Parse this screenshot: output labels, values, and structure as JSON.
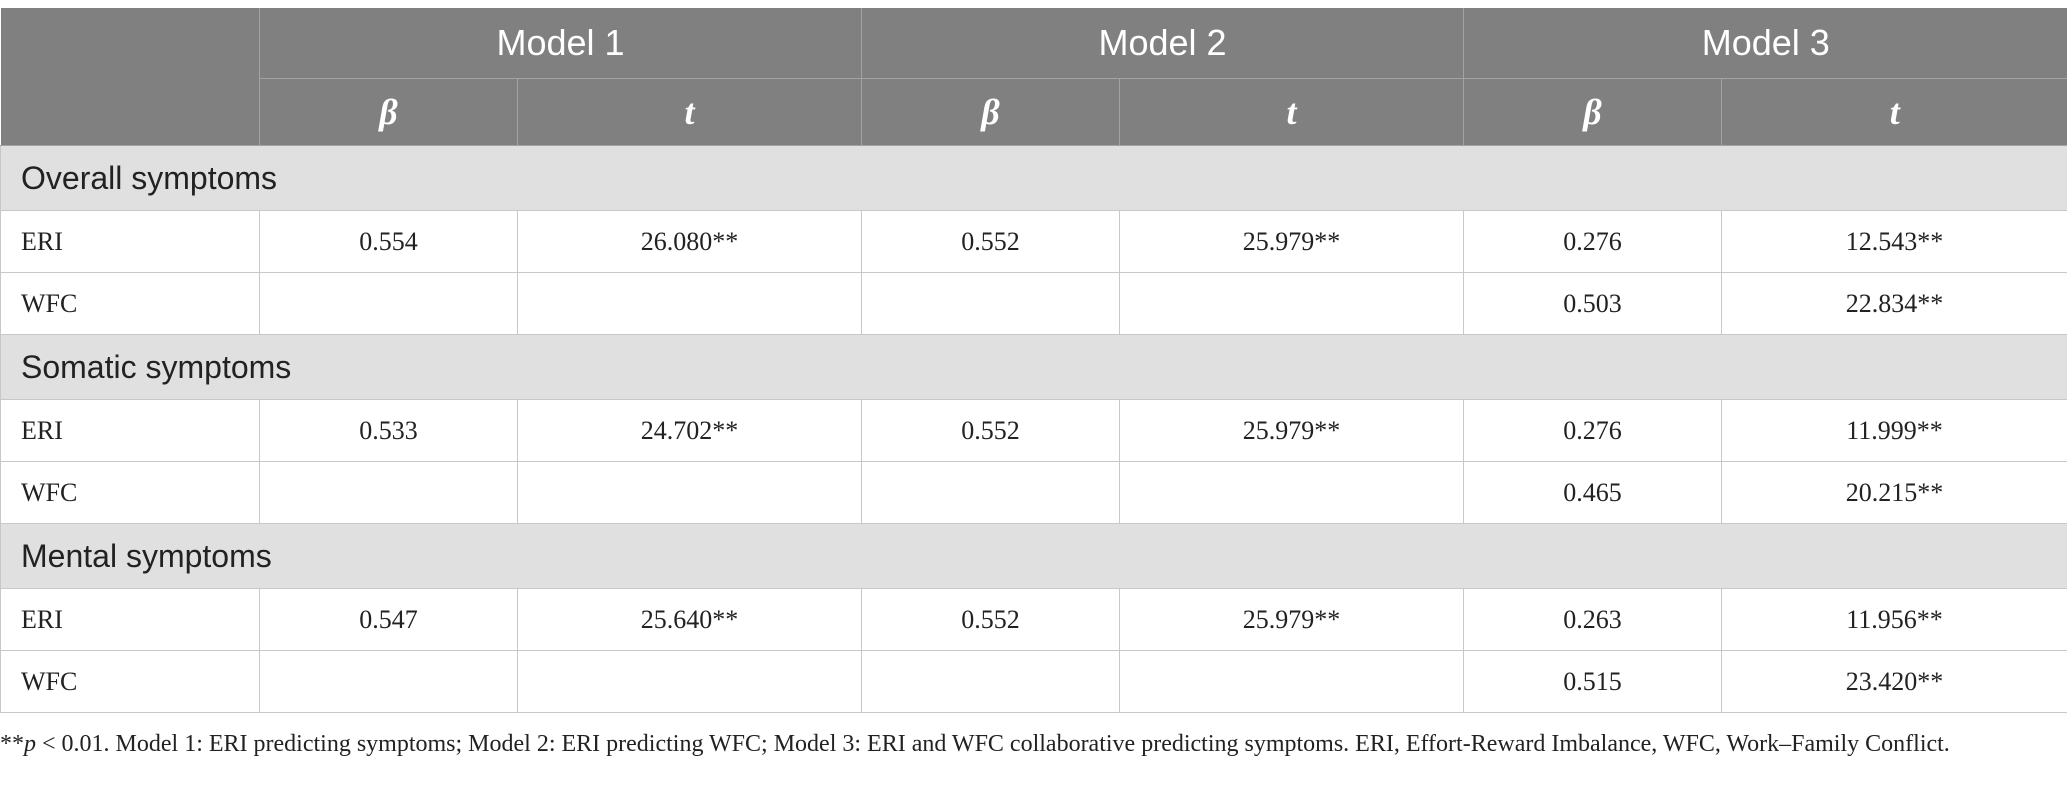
{
  "header": {
    "models": [
      "Model 1",
      "Model 2",
      "Model 3"
    ],
    "beta_label": "β",
    "t_label": "t"
  },
  "sections": [
    {
      "title": "Overall symptoms",
      "rows": [
        {
          "label": "ERI",
          "m1_beta": "0.554",
          "m1_t": "26.080**",
          "m2_beta": "0.552",
          "m2_t": "25.979**",
          "m3_beta": "0.276",
          "m3_t": "12.543**"
        },
        {
          "label": "WFC",
          "m1_beta": "",
          "m1_t": "",
          "m2_beta": "",
          "m2_t": "",
          "m3_beta": "0.503",
          "m3_t": "22.834**"
        }
      ]
    },
    {
      "title": "Somatic symptoms",
      "rows": [
        {
          "label": "ERI",
          "m1_beta": "0.533",
          "m1_t": "24.702**",
          "m2_beta": "0.552",
          "m2_t": "25.979**",
          "m3_beta": "0.276",
          "m3_t": "11.999**"
        },
        {
          "label": "WFC",
          "m1_beta": "",
          "m1_t": "",
          "m2_beta": "",
          "m2_t": "",
          "m3_beta": "0.465",
          "m3_t": "20.215**"
        }
      ]
    },
    {
      "title": "Mental symptoms",
      "rows": [
        {
          "label": "ERI",
          "m1_beta": "0.547",
          "m1_t": "25.640**",
          "m2_beta": "0.552",
          "m2_t": "25.979**",
          "m3_beta": "0.263",
          "m3_t": "11.956**"
        },
        {
          "label": "WFC",
          "m1_beta": "",
          "m1_t": "",
          "m2_beta": "",
          "m2_t": "",
          "m3_beta": "0.515",
          "m3_t": "23.420**"
        }
      ]
    }
  ],
  "footnote": {
    "prefix": "**",
    "p_symbol": "p",
    "text": " < 0.01. Model 1: ERI predicting symptoms; Model 2: ERI predicting WFC; Model 3: ERI and WFC collaborative predicting symptoms. ERI, Effort-Reward Imbalance, WFC, Work–Family Conflict."
  }
}
